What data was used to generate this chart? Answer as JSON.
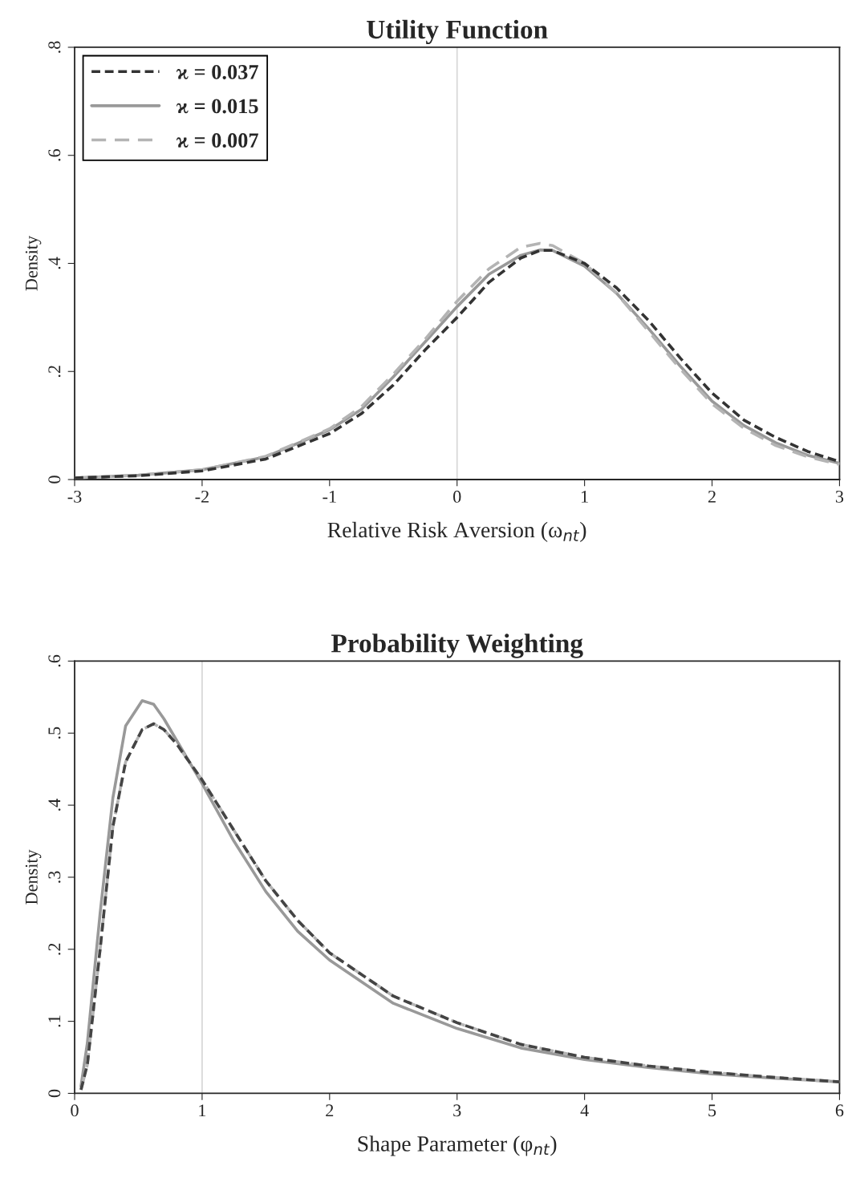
{
  "chart_data": [
    {
      "type": "line",
      "title": "Utility Function",
      "xlabel": "Relative Risk Aversion (ω$_{nt}$)",
      "ylabel": "Density",
      "legend": "top left",
      "grid": false,
      "x": [
        -3,
        -2.5,
        -2,
        -1.5,
        -1,
        -0.75,
        -0.5,
        -0.25,
        0,
        0.25,
        0.5,
        0.65,
        0.75,
        1,
        1.25,
        1.5,
        1.75,
        2,
        2.25,
        2.5,
        2.75,
        3
      ],
      "series": [
        {
          "name": "ϰ = 0.037",
          "color": "#333333",
          "line_style": "dashed",
          "values": [
            0.003,
            0.007,
            0.016,
            0.038,
            0.085,
            0.122,
            0.175,
            0.24,
            0.3,
            0.365,
            0.41,
            0.424,
            0.424,
            0.4,
            0.355,
            0.295,
            0.225,
            0.16,
            0.11,
            0.078,
            0.052,
            0.033
          ]
        },
        {
          "name": "ϰ = 0.015",
          "color": "#999999",
          "line_style": "solid",
          "values": [
            0.003,
            0.008,
            0.018,
            0.042,
            0.092,
            0.13,
            0.19,
            0.255,
            0.32,
            0.38,
            0.415,
            0.425,
            0.424,
            0.395,
            0.345,
            0.28,
            0.21,
            0.145,
            0.1,
            0.068,
            0.045,
            0.03
          ]
        },
        {
          "name": "ϰ = 0.007",
          "color": "#b4b4b4",
          "line_style": "dashed",
          "values": [
            0.003,
            0.008,
            0.018,
            0.043,
            0.094,
            0.135,
            0.195,
            0.26,
            0.33,
            0.39,
            0.43,
            0.437,
            0.433,
            0.4,
            0.345,
            0.275,
            0.205,
            0.14,
            0.095,
            0.063,
            0.042,
            0.028
          ]
        }
      ],
      "xlim": [
        -3,
        3
      ],
      "xticks": [
        -3,
        -2,
        -1,
        0,
        1,
        2,
        3
      ],
      "ylim": [
        0,
        0.8
      ],
      "yticks": [
        0,
        {
          "value": 0.2,
          "label": ".2"
        },
        {
          "value": 0.4,
          "label": ".4"
        },
        {
          "value": 0.6,
          "label": ".6"
        },
        {
          "value": 0.8,
          "label": ".8"
        }
      ],
      "ref_lines": [
        {
          "axis": "x",
          "value": 0,
          "color": "#d9d9d9"
        }
      ]
    },
    {
      "type": "line",
      "title": "Probability Weighting",
      "xlabel": "Shape Parameter (φ$_{nt}$)",
      "ylabel": "Density",
      "grid": false,
      "x": [
        0.05,
        0.1,
        0.2,
        0.3,
        0.4,
        0.53,
        0.62,
        0.7,
        0.8,
        1,
        1.25,
        1.5,
        1.75,
        2,
        2.5,
        3,
        3.5,
        4,
        4.5,
        5,
        5.5,
        6
      ],
      "series": [
        {
          "color": "#444444",
          "line_style": "dashed",
          "values": [
            0.005,
            0.04,
            0.2,
            0.37,
            0.46,
            0.505,
            0.513,
            0.505,
            0.485,
            0.435,
            0.365,
            0.295,
            0.24,
            0.195,
            0.135,
            0.098,
            0.068,
            0.05,
            0.038,
            0.029,
            0.022,
            0.016
          ]
        },
        {
          "color": "#999999",
          "line_style": "solid",
          "values": [
            0.01,
            0.07,
            0.25,
            0.41,
            0.51,
            0.545,
            0.54,
            0.52,
            0.49,
            0.43,
            0.35,
            0.28,
            0.225,
            0.185,
            0.125,
            0.09,
            0.063,
            0.047,
            0.036,
            0.027,
            0.021,
            0.016
          ]
        },
        {
          "color": "#b4b4b4",
          "line_style": "dashed",
          "values": [
            0.005,
            0.04,
            0.2,
            0.37,
            0.46,
            0.505,
            0.513,
            0.505,
            0.485,
            0.435,
            0.365,
            0.295,
            0.24,
            0.195,
            0.135,
            0.098,
            0.068,
            0.05,
            0.038,
            0.029,
            0.022,
            0.016
          ]
        }
      ],
      "xlim": [
        0,
        6
      ],
      "xticks": [
        0,
        1,
        2,
        3,
        4,
        5,
        6
      ],
      "ylim": [
        0,
        0.6
      ],
      "yticks": [
        0,
        {
          "value": 0.1,
          "label": ".1"
        },
        {
          "value": 0.2,
          "label": ".2"
        },
        {
          "value": 0.3,
          "label": ".3"
        },
        {
          "value": 0.4,
          "label": ".4"
        },
        {
          "value": 0.5,
          "label": ".5"
        },
        {
          "value": 0.6,
          "label": ".6"
        }
      ],
      "ref_lines": [
        {
          "axis": "x",
          "value": 1,
          "color": "#d9d9d9"
        }
      ]
    }
  ]
}
